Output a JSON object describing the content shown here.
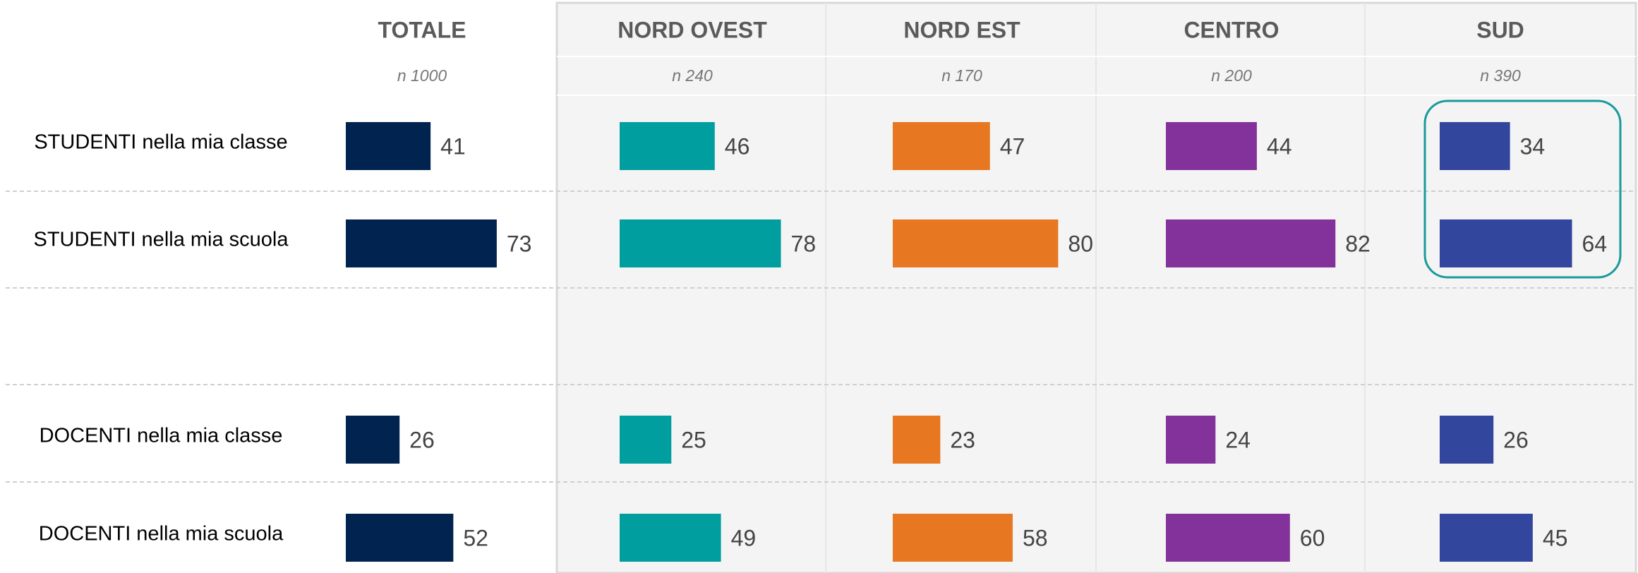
{
  "chart_data": [
    {
      "type": "bar",
      "title": "TOTALE",
      "subtitle": "n 1000",
      "color": "#00244f",
      "categories": [
        "STUDENTI nella mia classe",
        "STUDENTI nella mia scuola",
        "DOCENTI nella mia classe",
        "DOCENTI nella mia scuola"
      ],
      "values": [
        41,
        73,
        26,
        52
      ]
    },
    {
      "type": "bar",
      "title": "NORD OVEST",
      "subtitle": "n 240",
      "color": "#009e9e",
      "values": [
        46,
        78,
        25,
        49
      ]
    },
    {
      "type": "bar",
      "title": "NORD EST",
      "subtitle": "n 170",
      "color": "#e87722",
      "values": [
        47,
        80,
        23,
        58
      ]
    },
    {
      "type": "bar",
      "title": "CENTRO",
      "subtitle": "n 200",
      "color": "#84329b",
      "values": [
        44,
        82,
        24,
        60
      ]
    },
    {
      "type": "bar",
      "title": "SUD",
      "subtitle": "n 390",
      "color": "#33469e",
      "values": [
        34,
        64,
        26,
        45
      ]
    }
  ]
}
